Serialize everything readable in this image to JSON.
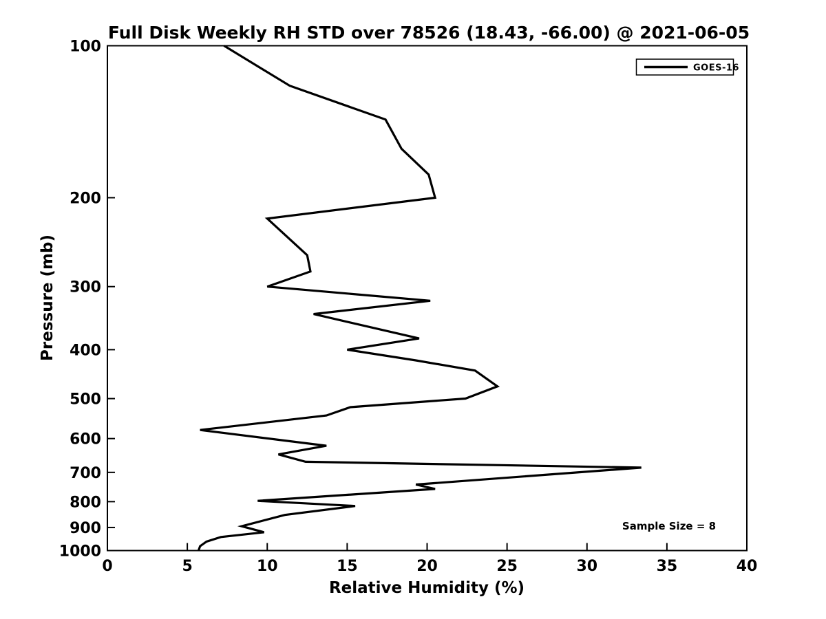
{
  "figure": {
    "background_color": "#ffffff",
    "line_color": "#000000"
  },
  "chart_data": {
    "type": "line",
    "title": "Full Disk Weekly RH STD over 78526 (18.43, -66.00) @ 2021-06-05",
    "xlabel": "Relative Humidity (%)",
    "ylabel": "Pressure (mb)",
    "xlim": [
      0,
      40
    ],
    "ylim": [
      100,
      1000
    ],
    "yscale": "log",
    "y_inverted": true,
    "grid": false,
    "xticks": [
      0,
      5,
      10,
      15,
      20,
      25,
      30,
      35,
      40
    ],
    "yticks": [
      100,
      200,
      300,
      400,
      500,
      600,
      700,
      800,
      900,
      1000
    ],
    "legend": {
      "position": "top-right",
      "entries": [
        {
          "label": "GOES-16",
          "color": "#000000"
        }
      ]
    },
    "annotation": {
      "text": "Sample Size = 8"
    },
    "series": [
      {
        "name": "GOES-16",
        "color": "#000000",
        "pressure_mb": [
          100,
          120,
          140,
          160,
          180,
          200,
          220,
          260,
          280,
          300,
          320,
          340,
          380,
          400,
          420,
          440,
          473,
          500,
          520,
          540,
          577,
          620,
          645,
          667,
          685,
          740,
          755,
          797,
          816,
          850,
          895,
          920,
          940,
          960,
          980,
          1000
        ],
        "rh_std_pct": [
          7.3,
          11.4,
          17.4,
          18.4,
          20.1,
          20.5,
          10.0,
          12.5,
          12.7,
          10.0,
          20.2,
          12.9,
          19.5,
          15.0,
          19.3,
          23.0,
          24.4,
          22.4,
          15.2,
          13.7,
          5.8,
          13.7,
          10.7,
          12.4,
          33.4,
          19.3,
          20.5,
          9.4,
          15.5,
          11.1,
          8.4,
          9.8,
          7.1,
          6.2,
          5.8,
          5.7
        ]
      }
    ]
  }
}
